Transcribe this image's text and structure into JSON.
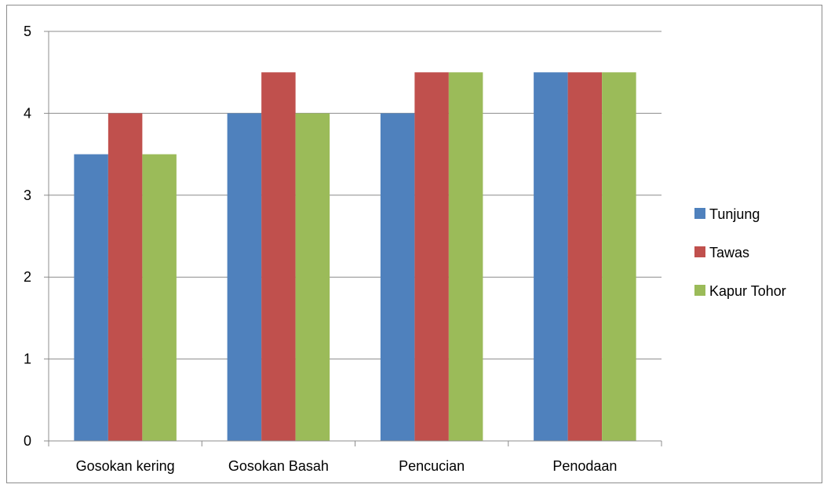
{
  "chart_data": {
    "type": "bar",
    "categories": [
      "Gosokan kering",
      "Gosokan Basah",
      "Pencucian",
      "Penodaan"
    ],
    "series": [
      {
        "name": "Tunjung",
        "values": [
          3.5,
          4,
          4,
          4.5
        ],
        "color": "#4F81BD"
      },
      {
        "name": "Tawas",
        "values": [
          4,
          4.5,
          4.5,
          4.5
        ],
        "color": "#C0504D"
      },
      {
        "name": "Kapur Tohor",
        "values": [
          3.5,
          4,
          4.5,
          4.5
        ],
        "color": "#9BBB59"
      }
    ],
    "ylim": [
      0,
      5
    ],
    "yticks": [
      "0",
      "1",
      "2",
      "3",
      "4",
      "5"
    ],
    "grid": true,
    "legend": "right",
    "title": "",
    "xlabel": "",
    "ylabel": ""
  }
}
